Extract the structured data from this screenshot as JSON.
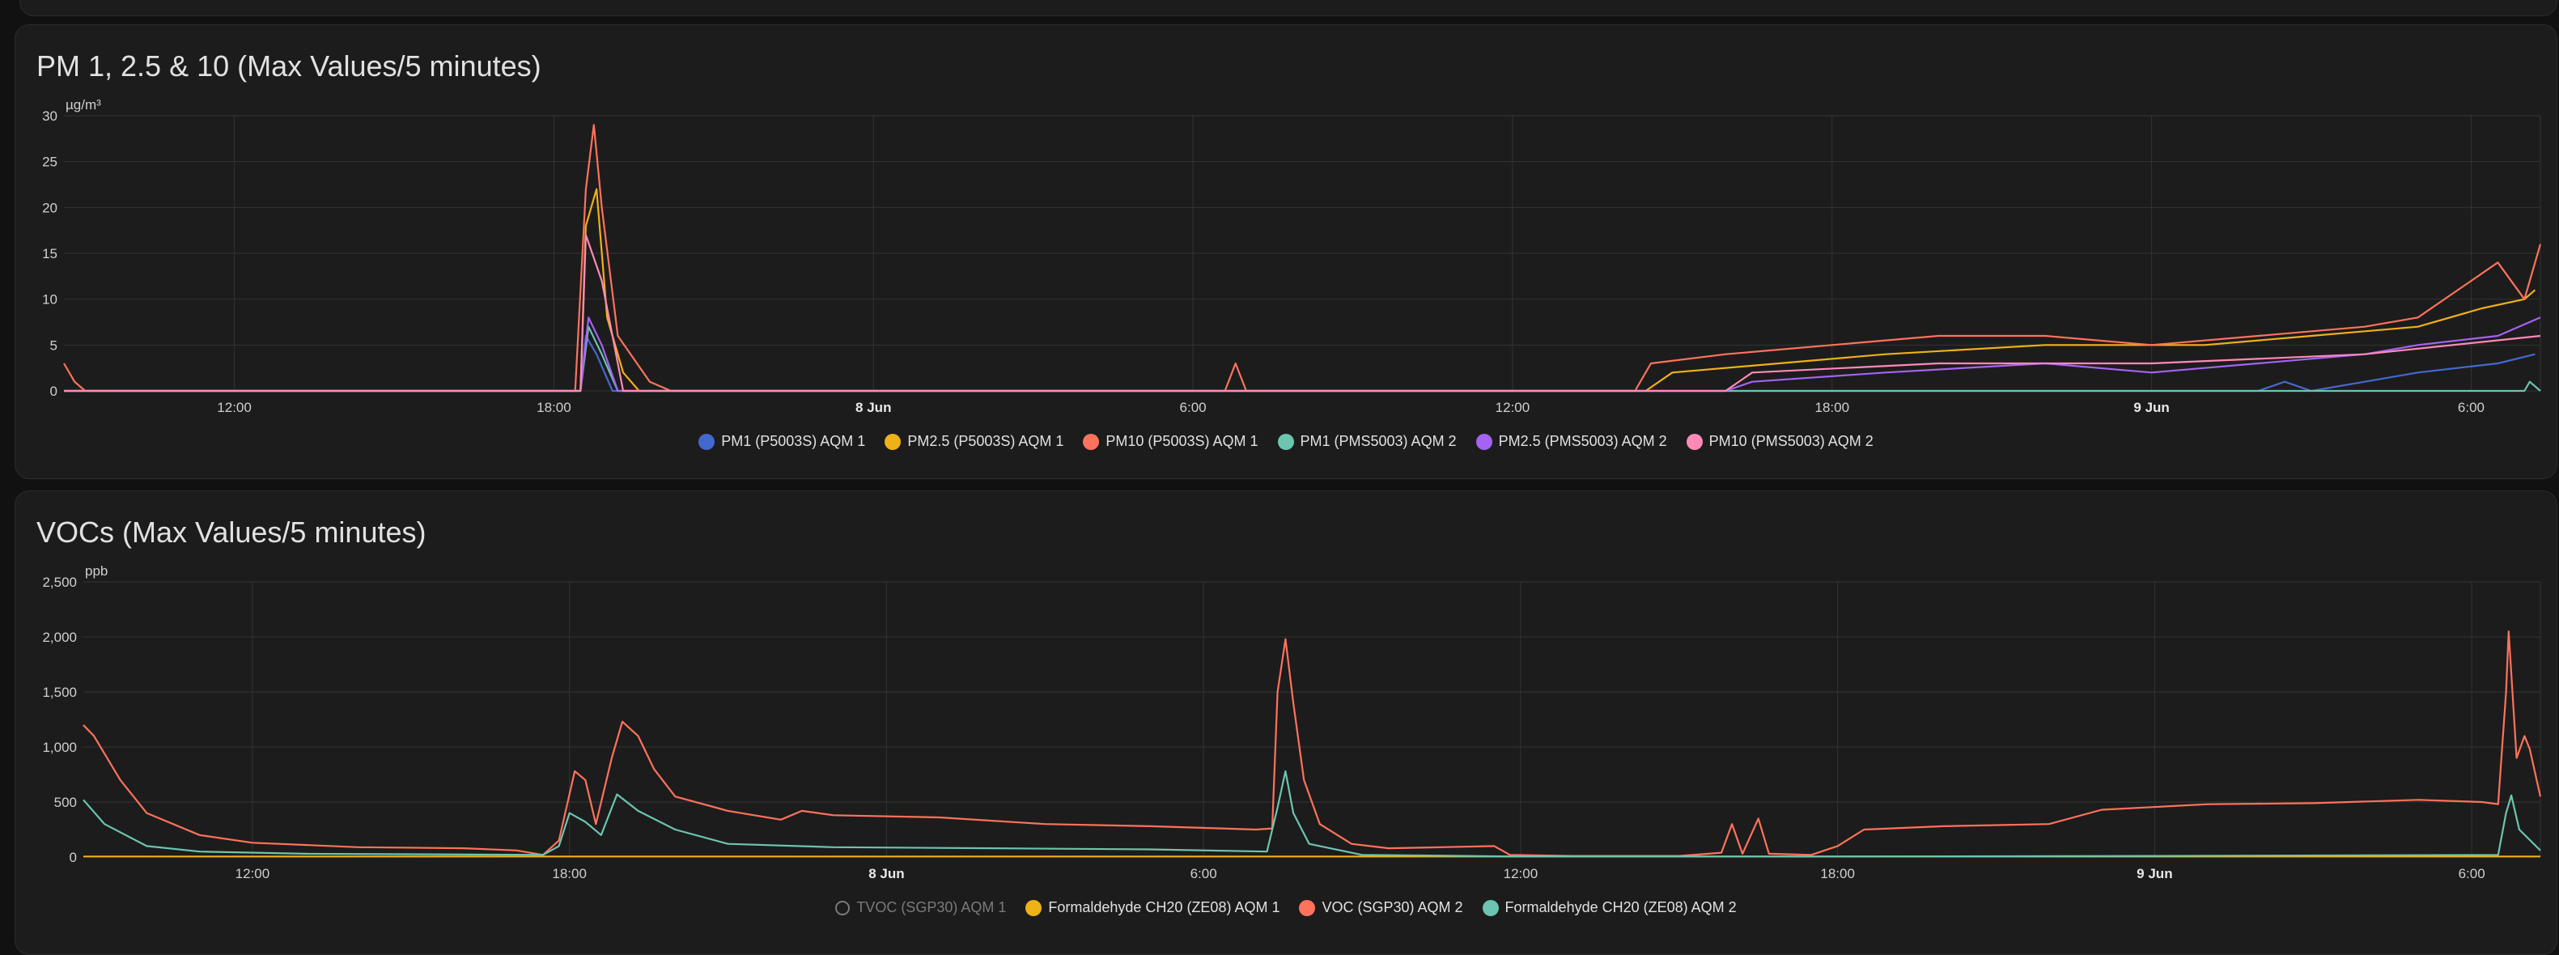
{
  "colors": {
    "background": "#111111",
    "card": "#1c1c1c",
    "grid": "#333333",
    "pm1_aqm1": "#4269d0",
    "pm25_aqm1": "#efb118",
    "pm10_aqm1": "#ff725c",
    "pm1_aqm2": "#6cc5b0",
    "pm25_aqm2": "#a463f2",
    "pm10_aqm2": "#ff8ab7"
  },
  "chart_data": [
    {
      "id": "pm",
      "type": "line",
      "title": "PM 1, 2.5 & 10 (Max Values/5 minutes)",
      "ylabel": "µg/m³",
      "ylim": [
        0,
        30
      ],
      "yticks": [
        0,
        5,
        10,
        15,
        20,
        25,
        30
      ],
      "xlim": [
        8.8,
        55.3
      ],
      "xticks": [
        {
          "h": 12,
          "label": "12:00",
          "bold": false
        },
        {
          "h": 18,
          "label": "18:00",
          "bold": false
        },
        {
          "h": 24,
          "label": "8 Jun",
          "bold": true
        },
        {
          "h": 30,
          "label": "6:00",
          "bold": false
        },
        {
          "h": 36,
          "label": "12:00",
          "bold": false
        },
        {
          "h": 42,
          "label": "18:00",
          "bold": false
        },
        {
          "h": 48,
          "label": "9 Jun",
          "bold": true
        },
        {
          "h": 54,
          "label": "6:00",
          "bold": false
        }
      ],
      "grid": true,
      "legend": "bottom-center",
      "series": [
        {
          "name": "PM1 (P5003S) AQM 1",
          "color": "#4269d0",
          "visible": true,
          "points": [
            [
              8.8,
              0
            ],
            [
              18.5,
              0
            ],
            [
              18.6,
              6
            ],
            [
              18.8,
              4
            ],
            [
              19.1,
              0
            ],
            [
              50,
              0
            ],
            [
              50.5,
              1
            ],
            [
              51,
              0
            ],
            [
              52,
              1
            ],
            [
              53,
              2
            ],
            [
              54.5,
              3
            ],
            [
              55.2,
              4
            ]
          ]
        },
        {
          "name": "PM2.5 (P5003S) AQM 1",
          "color": "#efb118",
          "visible": true,
          "points": [
            [
              8.8,
              0
            ],
            [
              18.5,
              0
            ],
            [
              18.6,
              18
            ],
            [
              18.8,
              22
            ],
            [
              19.0,
              8
            ],
            [
              19.3,
              2
            ],
            [
              19.6,
              0
            ],
            [
              38.5,
              0
            ],
            [
              39,
              2
            ],
            [
              41,
              3
            ],
            [
              43,
              4
            ],
            [
              46,
              5
            ],
            [
              49,
              5
            ],
            [
              51,
              6
            ],
            [
              53,
              7
            ],
            [
              54.2,
              9
            ],
            [
              55.0,
              10
            ],
            [
              55.2,
              11
            ]
          ]
        },
        {
          "name": "PM10 (P5003S) AQM 1",
          "color": "#ff725c",
          "visible": true,
          "points": [
            [
              8.8,
              3
            ],
            [
              9.0,
              1
            ],
            [
              9.2,
              0
            ],
            [
              18.4,
              0
            ],
            [
              18.6,
              22
            ],
            [
              18.75,
              29
            ],
            [
              18.9,
              20
            ],
            [
              19.2,
              6
            ],
            [
              19.8,
              1
            ],
            [
              20.2,
              0
            ],
            [
              30.6,
              0
            ],
            [
              30.8,
              3
            ],
            [
              31.0,
              0
            ],
            [
              38.3,
              0
            ],
            [
              38.6,
              3
            ],
            [
              40,
              4
            ],
            [
              42,
              5
            ],
            [
              44,
              6
            ],
            [
              46,
              6
            ],
            [
              48,
              5
            ],
            [
              50,
              6
            ],
            [
              52,
              7
            ],
            [
              53,
              8
            ],
            [
              54,
              12
            ],
            [
              54.5,
              14
            ],
            [
              55.0,
              10
            ],
            [
              55.3,
              16
            ]
          ]
        },
        {
          "name": "PM1 (PMS5003) AQM 2",
          "color": "#6cc5b0",
          "visible": true,
          "points": [
            [
              8.8,
              0
            ],
            [
              18.5,
              0
            ],
            [
              18.65,
              7
            ],
            [
              18.9,
              4
            ],
            [
              19.2,
              0
            ],
            [
              55.0,
              0
            ],
            [
              55.1,
              1
            ],
            [
              55.3,
              0
            ]
          ]
        },
        {
          "name": "PM2.5 (PMS5003) AQM 2",
          "color": "#a463f2",
          "visible": true,
          "points": [
            [
              8.8,
              0
            ],
            [
              18.5,
              0
            ],
            [
              18.65,
              8
            ],
            [
              18.9,
              5
            ],
            [
              19.2,
              0
            ],
            [
              40.0,
              0
            ],
            [
              40.5,
              1
            ],
            [
              43,
              2
            ],
            [
              46,
              3
            ],
            [
              48,
              2
            ],
            [
              50,
              3
            ],
            [
              52,
              4
            ],
            [
              53,
              5
            ],
            [
              54.5,
              6
            ],
            [
              55.3,
              8
            ]
          ]
        },
        {
          "name": "PM10 (PMS5003) AQM 2",
          "color": "#ff8ab7",
          "visible": true,
          "points": [
            [
              8.8,
              0
            ],
            [
              18.5,
              0
            ],
            [
              18.6,
              17
            ],
            [
              18.9,
              12
            ],
            [
              19.3,
              0
            ],
            [
              40.0,
              0
            ],
            [
              40.5,
              2
            ],
            [
              44,
              3
            ],
            [
              48,
              3
            ],
            [
              52,
              4
            ],
            [
              55.3,
              6
            ]
          ]
        }
      ]
    },
    {
      "id": "voc",
      "type": "line",
      "title": "VOCs (Max Values/5 minutes)",
      "ylabel": "ppb",
      "ylim": [
        0,
        2500
      ],
      "yticks": [
        0,
        500,
        1000,
        1500,
        2000,
        2500
      ],
      "ytick_labels": [
        "0",
        "500",
        "1,000",
        "1,500",
        "2,000",
        "2,500"
      ],
      "xlim": [
        8.8,
        55.3
      ],
      "xticks": [
        {
          "h": 12,
          "label": "12:00",
          "bold": false
        },
        {
          "h": 18,
          "label": "18:00",
          "bold": false
        },
        {
          "h": 24,
          "label": "8 Jun",
          "bold": true
        },
        {
          "h": 30,
          "label": "6:00",
          "bold": false
        },
        {
          "h": 36,
          "label": "12:00",
          "bold": false
        },
        {
          "h": 42,
          "label": "18:00",
          "bold": false
        },
        {
          "h": 48,
          "label": "9 Jun",
          "bold": true
        },
        {
          "h": 54,
          "label": "6:00",
          "bold": false
        }
      ],
      "grid": true,
      "legend": "bottom-center",
      "series": [
        {
          "name": "TVOC (SGP30) AQM 1",
          "color": "#7a7a7a",
          "visible": false,
          "points": []
        },
        {
          "name": "Formaldehyde CH20 (ZE08) AQM 1",
          "color": "#efb118",
          "visible": true,
          "points": [
            [
              8.8,
              5
            ],
            [
              55.3,
              5
            ]
          ]
        },
        {
          "name": "VOC (SGP30) AQM 2",
          "color": "#ff725c",
          "visible": true,
          "points": [
            [
              8.8,
              1200
            ],
            [
              9.0,
              1100
            ],
            [
              9.5,
              700
            ],
            [
              10,
              400
            ],
            [
              11,
              200
            ],
            [
              12,
              130
            ],
            [
              14,
              90
            ],
            [
              16,
              80
            ],
            [
              17,
              60
            ],
            [
              17.5,
              20
            ],
            [
              17.8,
              150
            ],
            [
              18.1,
              780
            ],
            [
              18.3,
              700
            ],
            [
              18.5,
              300
            ],
            [
              18.8,
              900
            ],
            [
              19.0,
              1230
            ],
            [
              19.3,
              1100
            ],
            [
              19.6,
              800
            ],
            [
              20,
              550
            ],
            [
              21,
              420
            ],
            [
              22,
              340
            ],
            [
              22.4,
              420
            ],
            [
              23,
              380
            ],
            [
              25,
              360
            ],
            [
              27,
              300
            ],
            [
              29,
              280
            ],
            [
              31,
              250
            ],
            [
              31.3,
              260
            ],
            [
              31.4,
              1500
            ],
            [
              31.55,
              1980
            ],
            [
              31.7,
              1400
            ],
            [
              31.9,
              700
            ],
            [
              32.2,
              300
            ],
            [
              32.8,
              120
            ],
            [
              33.5,
              80
            ],
            [
              34.5,
              90
            ],
            [
              35.5,
              100
            ],
            [
              35.8,
              20
            ],
            [
              37,
              10
            ],
            [
              39,
              10
            ],
            [
              39.8,
              40
            ],
            [
              40.0,
              300
            ],
            [
              40.2,
              30
            ],
            [
              40.5,
              350
            ],
            [
              40.7,
              30
            ],
            [
              41.5,
              20
            ],
            [
              42,
              100
            ],
            [
              42.5,
              250
            ],
            [
              44,
              280
            ],
            [
              46,
              300
            ],
            [
              47,
              430
            ],
            [
              49,
              480
            ],
            [
              51,
              490
            ],
            [
              53,
              520
            ],
            [
              54.2,
              500
            ],
            [
              54.5,
              480
            ],
            [
              54.65,
              1500
            ],
            [
              54.7,
              2050
            ],
            [
              54.85,
              900
            ],
            [
              55.0,
              1100
            ],
            [
              55.1,
              980
            ],
            [
              55.3,
              550
            ]
          ]
        },
        {
          "name": "Formaldehyde CH20 (ZE08) AQM 2",
          "color": "#6cc5b0",
          "visible": true,
          "points": [
            [
              8.8,
              520
            ],
            [
              9.2,
              300
            ],
            [
              10,
              100
            ],
            [
              11,
              50
            ],
            [
              13,
              30
            ],
            [
              17.5,
              20
            ],
            [
              17.8,
              100
            ],
            [
              18.0,
              400
            ],
            [
              18.3,
              320
            ],
            [
              18.6,
              200
            ],
            [
              18.9,
              570
            ],
            [
              19.3,
              420
            ],
            [
              20,
              250
            ],
            [
              21,
              120
            ],
            [
              23,
              90
            ],
            [
              26,
              80
            ],
            [
              29,
              70
            ],
            [
              31.2,
              50
            ],
            [
              31.4,
              450
            ],
            [
              31.55,
              780
            ],
            [
              31.7,
              400
            ],
            [
              32,
              120
            ],
            [
              33,
              20
            ],
            [
              36,
              5
            ],
            [
              42,
              5
            ],
            [
              48,
              10
            ],
            [
              54.5,
              20
            ],
            [
              54.65,
              400
            ],
            [
              54.75,
              560
            ],
            [
              54.9,
              250
            ],
            [
              55.3,
              60
            ]
          ]
        }
      ]
    }
  ]
}
